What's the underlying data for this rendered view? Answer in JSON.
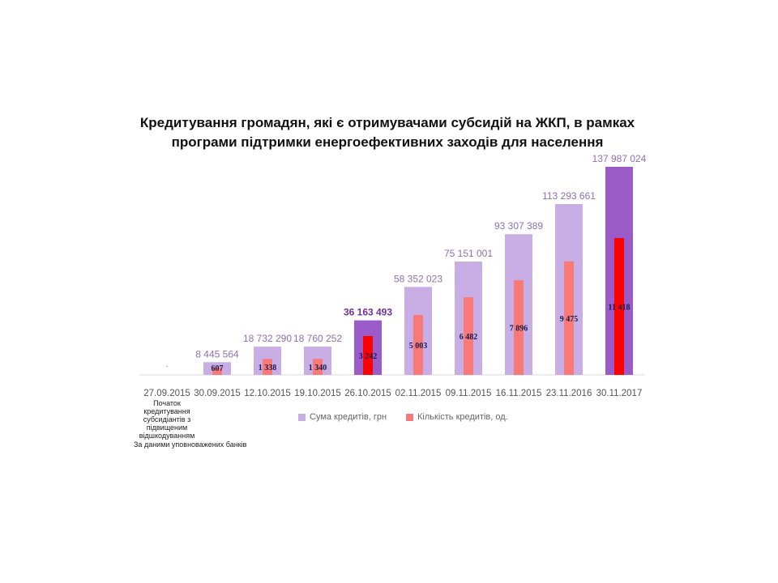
{
  "chart_data": {
    "type": "bar",
    "title": "Кредитування громадян, які є отримувачами субсидій на ЖКП, в рамках програми підтримки енергоефективних заходів для населення",
    "title_lines": [
      "Кредитування громадян, які є отримувачами субсидій на ЖКП, в рамках",
      "програми підтримки енергоефективних заходів для населення"
    ],
    "categories": [
      "27.09.2015",
      "30.09.2015",
      "12.10.2015",
      "19.10.2015",
      "26.10.2015",
      "02.11.2015",
      "09.11.2015",
      "16.11.2015",
      "23.11.2016",
      "30.11.2017"
    ],
    "series": [
      {
        "name": "Сума кредитів, грн",
        "values": [
          0,
          8445564,
          18732290,
          18760252,
          36163493,
          58352023,
          75151001,
          93307389,
          113293661,
          137987024
        ],
        "labels": [
          "-",
          "8 445 564",
          "18 732 290",
          "18 760 252",
          "36 163 493",
          "58 352 023",
          "75 151 001",
          "93 307 389",
          "113 293 661",
          "137 987 024"
        ],
        "color": "#c9aee6",
        "highlight_color": "#9b5bc9"
      },
      {
        "name": "Кількість кредитів, од.",
        "values": [
          0,
          607,
          1338,
          1340,
          3242,
          5003,
          6482,
          7896,
          9475,
          11418
        ],
        "labels": [
          "",
          "607",
          "1 338",
          "1 340",
          "3 242",
          "5 003",
          "6 482",
          "7 896",
          "9 475",
          "11 418"
        ],
        "color": "#f77a78",
        "highlight_color": "#ff0000"
      }
    ],
    "highlighted": [
      4,
      9
    ],
    "legend": "bottom",
    "first_category_note": "Початок кредитування субсидіантів з підвищеним відшкодуванням",
    "source": "За даними уповноважених банків"
  }
}
